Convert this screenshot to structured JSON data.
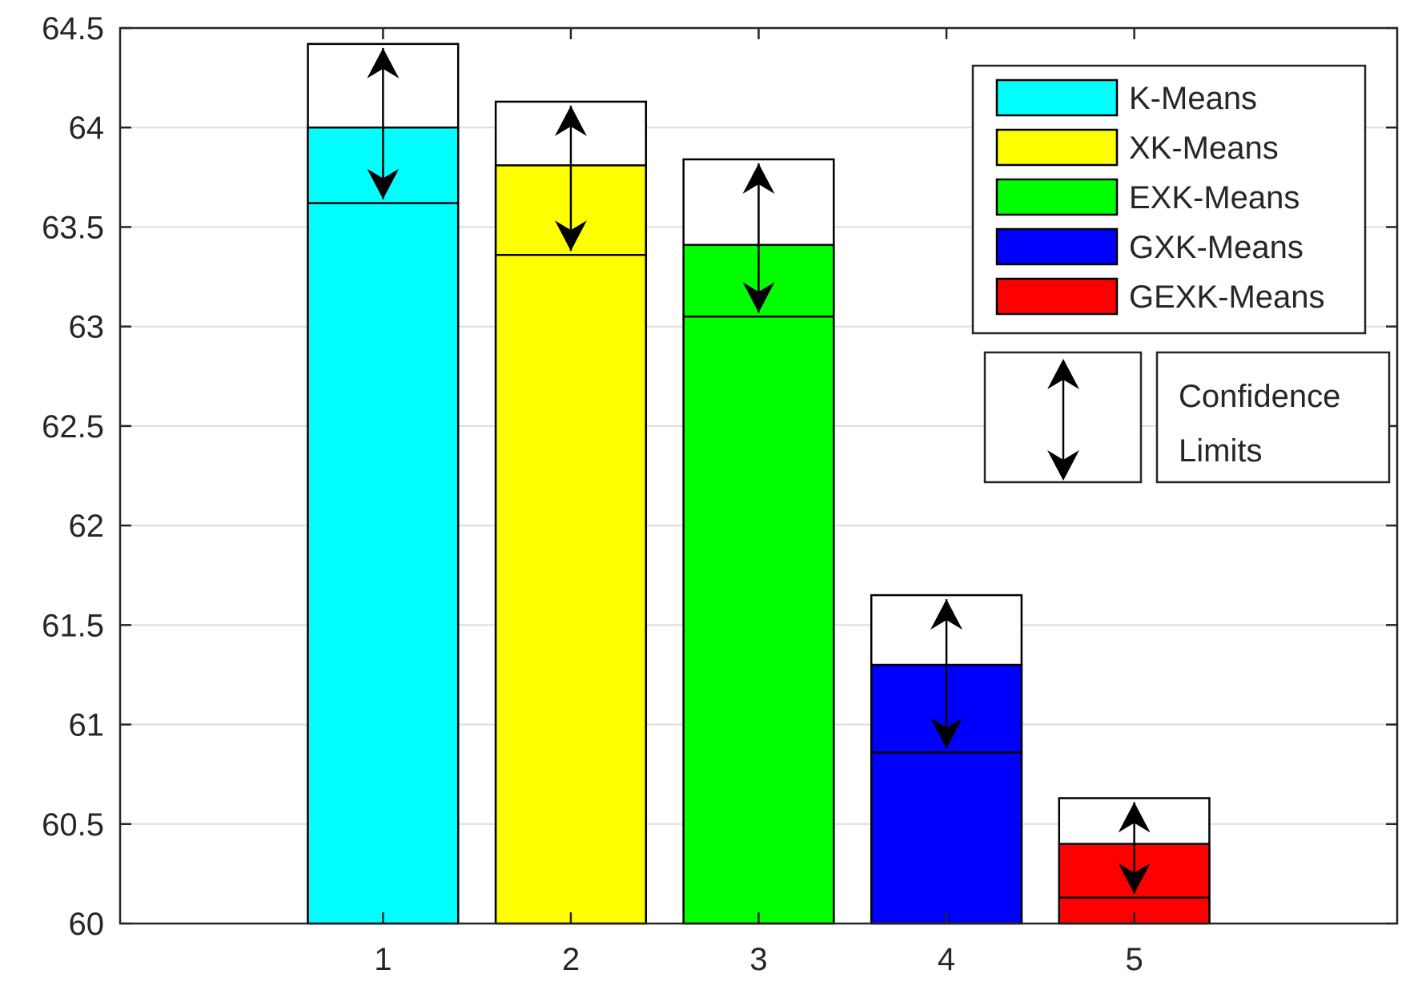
{
  "chart_data": {
    "type": "bar",
    "categories": [
      "1",
      "2",
      "3",
      "4",
      "5"
    ],
    "series": [
      {
        "name": "K-Means",
        "color": "#00ffff",
        "value": 64.0,
        "lower": 63.62,
        "upper": 64.42
      },
      {
        "name": "XK-Means",
        "color": "#ffff00",
        "value": 63.81,
        "lower": 63.36,
        "upper": 64.13
      },
      {
        "name": "EXK-Means",
        "color": "#00ff00",
        "value": 63.41,
        "lower": 63.05,
        "upper": 63.84
      },
      {
        "name": "GXK-Means",
        "color": "#0000ff",
        "value": 61.3,
        "lower": 60.86,
        "upper": 61.65
      },
      {
        "name": "GEXK-Means",
        "color": "#ff0000",
        "value": 60.4,
        "lower": 60.13,
        "upper": 60.63
      }
    ],
    "ylim": [
      60,
      64.5
    ],
    "yticks": [
      "60",
      "60.5",
      "61",
      "61.5",
      "62",
      "62.5",
      "63",
      "63.5",
      "64",
      "64.5"
    ],
    "xticks": [
      "1",
      "2",
      "3",
      "4",
      "5"
    ],
    "grid": true,
    "legend": {
      "placement": "top-right",
      "entries": [
        "K-Means",
        "XK-Means",
        "EXK-Means",
        "GXK-Means",
        "GEXK-Means"
      ],
      "confidence_label_line1": "Confidence",
      "confidence_label_line2": "Limits"
    }
  }
}
